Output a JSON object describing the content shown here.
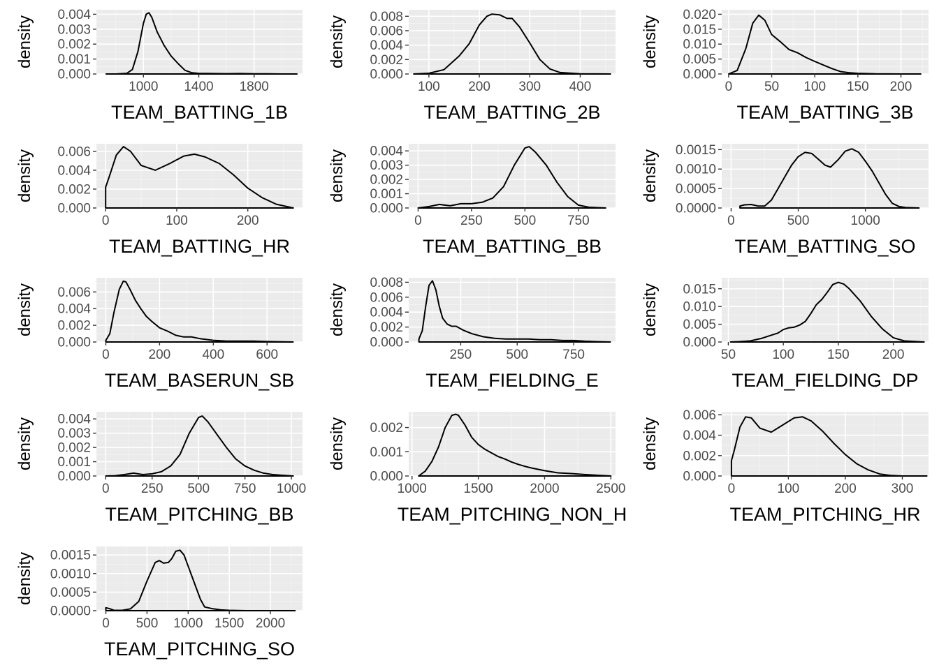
{
  "chart_data": [
    {
      "type": "line",
      "title": "",
      "xlabel": "TEAM_BATTING_1B",
      "ylabel": "density",
      "xlim": [
        660,
        2150
      ],
      "ylim": [
        0,
        0.0043
      ],
      "xticks": [
        1000,
        1400,
        1800
      ],
      "xtick_labels": [
        "1000",
        "1400",
        "1800"
      ],
      "yticks": [
        0,
        0.001,
        0.002,
        0.003,
        0.004
      ],
      "ytick_labels": [
        "0.000",
        "0.001",
        "0.002",
        "0.003",
        "0.004"
      ],
      "series": [
        {
          "x": [
            730,
            800,
            880,
            920,
            960,
            1000,
            1020,
            1040,
            1060,
            1100,
            1150,
            1200,
            1250,
            1300,
            1350,
            1400,
            1500,
            1600,
            1700,
            1800,
            1900,
            2000,
            2110
          ],
          "y": [
            0,
            0,
            4e-05,
            0.0003,
            0.0015,
            0.0034,
            0.004,
            0.0041,
            0.0038,
            0.0028,
            0.0019,
            0.0012,
            0.0007,
            0.00025,
            8e-05,
            4e-05,
            3e-05,
            2e-05,
            3e-05,
            1e-05,
            1e-05,
            0,
            0
          ]
        }
      ]
    },
    {
      "type": "line",
      "title": "",
      "xlabel": "TEAM_BATTING_2B",
      "ylabel": "density",
      "xlim": [
        60,
        470
      ],
      "ylim": [
        0,
        0.0089
      ],
      "xticks": [
        100,
        200,
        300,
        400
      ],
      "xtick_labels": [
        "100",
        "200",
        "300",
        "400"
      ],
      "yticks": [
        0,
        0.002,
        0.004,
        0.006,
        0.008
      ],
      "ytick_labels": [
        "0.000",
        "0.002",
        "0.004",
        "0.006",
        "0.008"
      ],
      "series": [
        {
          "x": [
            70,
            100,
            130,
            160,
            180,
            200,
            215,
            225,
            240,
            255,
            265,
            280,
            300,
            320,
            340,
            360,
            400,
            460
          ],
          "y": [
            0,
            0.0001,
            0.0006,
            0.0025,
            0.0042,
            0.0068,
            0.008,
            0.0083,
            0.0082,
            0.0077,
            0.0077,
            0.0065,
            0.0043,
            0.002,
            0.0007,
            0.0002,
            3e-05,
            0
          ]
        }
      ]
    },
    {
      "type": "line",
      "title": "",
      "xlabel": "TEAM_BATTING_3B",
      "ylabel": "density",
      "xlim": [
        -8,
        232
      ],
      "ylim": [
        0,
        0.0215
      ],
      "xticks": [
        0,
        50,
        100,
        150,
        200
      ],
      "xtick_labels": [
        "0",
        "50",
        "100",
        "150",
        "200"
      ],
      "yticks": [
        0,
        0.005,
        0.01,
        0.015,
        0.02
      ],
      "ytick_labels": [
        "0.000",
        "0.005",
        "0.010",
        "0.015",
        "0.020"
      ],
      "series": [
        {
          "x": [
            0,
            10,
            20,
            28,
            35,
            42,
            50,
            60,
            70,
            80,
            90,
            100,
            110,
            120,
            130,
            140,
            150,
            170,
            200,
            223
          ],
          "y": [
            0,
            0.0012,
            0.0085,
            0.017,
            0.0197,
            0.018,
            0.0132,
            0.0108,
            0.0082,
            0.0071,
            0.0055,
            0.0042,
            0.003,
            0.0018,
            0.0008,
            0.0004,
            0.0002,
            5e-05,
            1e-05,
            0
          ]
        }
      ]
    },
    {
      "type": "line",
      "title": "",
      "xlabel": "TEAM_BATTING_HR",
      "ylabel": "density",
      "xlim": [
        -13,
        277
      ],
      "ylim": [
        0,
        0.0068
      ],
      "xticks": [
        0,
        100,
        200
      ],
      "xtick_labels": [
        "0",
        "100",
        "200"
      ],
      "yticks": [
        0,
        0.002,
        0.004,
        0.006
      ],
      "ytick_labels": [
        "0.000",
        "0.002",
        "0.004",
        "0.006"
      ],
      "series": [
        {
          "x": [
            0,
            0,
            5,
            15,
            25,
            35,
            50,
            70,
            90,
            110,
            125,
            140,
            160,
            180,
            200,
            220,
            240,
            264
          ],
          "y": [
            0,
            0.0022,
            0.0033,
            0.0056,
            0.0065,
            0.006,
            0.0045,
            0.004,
            0.0047,
            0.0055,
            0.0057,
            0.0054,
            0.0047,
            0.0035,
            0.0021,
            0.0011,
            0.0004,
            0
          ]
        }
      ]
    },
    {
      "type": "line",
      "title": "",
      "xlabel": "TEAM_BATTING_BB",
      "ylabel": "density",
      "xlim": [
        -44,
        924
      ],
      "ylim": [
        0,
        0.0045
      ],
      "xticks": [
        0,
        250,
        500,
        750
      ],
      "xtick_labels": [
        "0",
        "250",
        "500",
        "750"
      ],
      "yticks": [
        0,
        0.001,
        0.002,
        0.003,
        0.004
      ],
      "ytick_labels": [
        "0.000",
        "0.001",
        "0.002",
        "0.003",
        "0.004"
      ],
      "series": [
        {
          "x": [
            0,
            50,
            100,
            150,
            200,
            250,
            300,
            350,
            400,
            450,
            500,
            520,
            550,
            600,
            650,
            700,
            750,
            800,
            878
          ],
          "y": [
            0,
            0.0001,
            0.00025,
            0.00015,
            0.0003,
            0.0003,
            0.0004,
            0.0007,
            0.0015,
            0.003,
            0.0042,
            0.0043,
            0.0039,
            0.003,
            0.0018,
            0.0008,
            0.0002,
            5e-05,
            0
          ]
        }
      ]
    },
    {
      "type": "line",
      "title": "",
      "xlabel": "TEAM_BATTING_SO",
      "ylabel": "density",
      "xlim": [
        -70,
        1470
      ],
      "ylim": [
        0,
        0.00165
      ],
      "xticks": [
        0,
        500,
        1000
      ],
      "xtick_labels": [
        "0",
        "500",
        "1000"
      ],
      "yticks": [
        0,
        0.0005,
        0.001,
        0.0015
      ],
      "ytick_labels": [
        "0.0000",
        "0.0005",
        "0.0010",
        "0.0015"
      ],
      "series": [
        {
          "x": [
            66,
            100,
            150,
            200,
            250,
            300,
            350,
            400,
            450,
            500,
            550,
            600,
            650,
            700,
            740,
            800,
            850,
            900,
            950,
            1000,
            1050,
            1100,
            1150,
            1200,
            1250,
            1300,
            1399
          ],
          "y": [
            5e-05,
            8e-05,
            9e-05,
            5e-05,
            5e-05,
            0.0002,
            0.0005,
            0.0008,
            0.0011,
            0.00132,
            0.00143,
            0.0014,
            0.00125,
            0.0011,
            0.00105,
            0.00125,
            0.00146,
            0.00152,
            0.00143,
            0.0012,
            0.00095,
            0.00065,
            0.00035,
            0.00012,
            4e-05,
            1e-05,
            0
          ]
        }
      ]
    },
    {
      "type": "line",
      "title": "",
      "xlabel": "TEAM_BASERUN_SB",
      "ylabel": "density",
      "xlim": [
        -35,
        732
      ],
      "ylim": [
        0,
        0.0077
      ],
      "xticks": [
        0,
        200,
        400,
        600
      ],
      "xtick_labels": [
        "0",
        "200",
        "400",
        "600"
      ],
      "yticks": [
        0,
        0.002,
        0.004,
        0.006
      ],
      "ytick_labels": [
        "0.000",
        "0.002",
        "0.004",
        "0.006"
      ],
      "series": [
        {
          "x": [
            0,
            15,
            30,
            50,
            65,
            75,
            90,
            110,
            130,
            150,
            170,
            200,
            230,
            260,
            290,
            320,
            350,
            400,
            450,
            500,
            550,
            600,
            697
          ],
          "y": [
            0.0002,
            0.001,
            0.0035,
            0.0063,
            0.0073,
            0.0072,
            0.0063,
            0.005,
            0.004,
            0.0031,
            0.0025,
            0.0017,
            0.0013,
            0.0008,
            0.0006,
            0.0006,
            0.0004,
            0.0002,
            0.0001,
            0.0001,
            0.0001,
            5e-05,
            0
          ]
        }
      ]
    },
    {
      "type": "line",
      "title": "",
      "xlabel": "TEAM_FIELDING_E",
      "ylabel": "density",
      "xlim": [
        20,
        935
      ],
      "ylim": [
        0,
        0.0086
      ],
      "xticks": [
        250,
        500,
        750
      ],
      "xtick_labels": [
        "250",
        "500",
        "750"
      ],
      "yticks": [
        0,
        0.002,
        0.004,
        0.006,
        0.008
      ],
      "ytick_labels": [
        "0.000",
        "0.002",
        "0.004",
        "0.006",
        "0.008"
      ],
      "series": [
        {
          "x": [
            65,
            80,
            95,
            110,
            125,
            140,
            155,
            170,
            190,
            210,
            230,
            260,
            300,
            350,
            400,
            450,
            500,
            550,
            600,
            650,
            700,
            750,
            800,
            850,
            912
          ],
          "y": [
            0.0004,
            0.0015,
            0.0048,
            0.0076,
            0.0082,
            0.007,
            0.0048,
            0.0032,
            0.0024,
            0.0021,
            0.0021,
            0.0016,
            0.0011,
            0.0007,
            0.0005,
            0.0004,
            0.0004,
            0.0004,
            0.0003,
            0.0003,
            0.0002,
            0.0002,
            0.0001,
            5e-05,
            0
          ]
        }
      ]
    },
    {
      "type": "line",
      "title": "",
      "xlabel": "TEAM_FIELDING_DP",
      "ylabel": "density",
      "xlim": [
        44,
        232
      ],
      "ylim": [
        0,
        0.0181
      ],
      "xticks": [
        50,
        100,
        150,
        200
      ],
      "xtick_labels": [
        "50",
        "100",
        "150",
        "200"
      ],
      "yticks": [
        0,
        0.005,
        0.01,
        0.015
      ],
      "ytick_labels": [
        "0.000",
        "0.005",
        "0.010",
        "0.015"
      ],
      "series": [
        {
          "x": [
            52,
            60,
            70,
            80,
            90,
            95,
            100,
            105,
            110,
            115,
            120,
            125,
            130,
            135,
            140,
            145,
            150,
            155,
            160,
            170,
            180,
            190,
            200,
            210,
            228
          ],
          "y": [
            0,
            0.0001,
            0.0003,
            0.001,
            0.002,
            0.0025,
            0.0035,
            0.004,
            0.0042,
            0.0048,
            0.0058,
            0.008,
            0.0105,
            0.012,
            0.014,
            0.0162,
            0.0168,
            0.0163,
            0.015,
            0.0115,
            0.0072,
            0.0037,
            0.0012,
            0.0003,
            0
          ]
        }
      ]
    },
    {
      "type": "line",
      "title": "",
      "xlabel": "TEAM_PITCHING_BB",
      "ylabel": "density",
      "xlim": [
        -50,
        1060
      ],
      "ylim": [
        0,
        0.0045
      ],
      "xticks": [
        0,
        250,
        500,
        750,
        1000
      ],
      "xtick_labels": [
        "0",
        "250",
        "500",
        "750",
        "1000"
      ],
      "yticks": [
        0,
        0.001,
        0.002,
        0.003,
        0.004
      ],
      "ytick_labels": [
        "0.000",
        "0.001",
        "0.002",
        "0.003",
        "0.004"
      ],
      "series": [
        {
          "x": [
            0,
            50,
            100,
            150,
            200,
            250,
            300,
            350,
            400,
            450,
            500,
            520,
            550,
            600,
            650,
            700,
            750,
            800,
            850,
            900,
            950,
            1010
          ],
          "y": [
            0,
            2e-05,
            0.0001,
            0.0002,
            0.0001,
            0.00015,
            0.0003,
            0.0007,
            0.0015,
            0.003,
            0.0041,
            0.0042,
            0.0038,
            0.0029,
            0.002,
            0.0012,
            0.0007,
            0.0004,
            0.0002,
            0.0001,
            5e-05,
            0
          ]
        }
      ]
    },
    {
      "type": "line",
      "title": "",
      "xlabel": "TEAM_PITCHING_NON_H",
      "ylabel": "density",
      "xlim": [
        975,
        2535
      ],
      "ylim": [
        0,
        0.00265
      ],
      "xticks": [
        1000,
        1500,
        2000,
        2500
      ],
      "xtick_labels": [
        "1000",
        "1500",
        "2000",
        "2500"
      ],
      "yticks": [
        0,
        0.001,
        0.002
      ],
      "ytick_labels": [
        "0.000",
        "0.001",
        "0.002"
      ],
      "series": [
        {
          "x": [
            1050,
            1100,
            1150,
            1200,
            1250,
            1300,
            1330,
            1350,
            1400,
            1450,
            1500,
            1550,
            1600,
            1650,
            1700,
            1750,
            1800,
            1850,
            1900,
            2000,
            2100,
            2200,
            2300,
            2400,
            2500
          ],
          "y": [
            0,
            0.0002,
            0.0006,
            0.0012,
            0.002,
            0.0025,
            0.00255,
            0.0025,
            0.0021,
            0.0016,
            0.0013,
            0.0011,
            0.00095,
            0.0008,
            0.0007,
            0.00058,
            0.00048,
            0.0004,
            0.00033,
            0.00022,
            0.00013,
            0.0001,
            6e-05,
            3e-05,
            0
          ]
        }
      ]
    },
    {
      "type": "line",
      "title": "",
      "xlabel": "TEAM_PITCHING_HR",
      "ylabel": "density",
      "xlim": [
        -17,
        346
      ],
      "ylim": [
        0,
        0.0063
      ],
      "xticks": [
        0,
        100,
        200,
        300
      ],
      "xtick_labels": [
        "0",
        "100",
        "200",
        "300"
      ],
      "yticks": [
        0,
        0.002,
        0.004,
        0.006
      ],
      "ytick_labels": [
        "0.000",
        "0.002",
        "0.004",
        "0.006"
      ],
      "series": [
        {
          "x": [
            0,
            0,
            5,
            15,
            25,
            35,
            50,
            70,
            90,
            110,
            125,
            140,
            160,
            180,
            200,
            220,
            240,
            260,
            280,
            300,
            343
          ],
          "y": [
            0,
            0.0015,
            0.0025,
            0.0048,
            0.0058,
            0.0057,
            0.0047,
            0.0043,
            0.005,
            0.0057,
            0.0058,
            0.0054,
            0.0044,
            0.0032,
            0.0021,
            0.0012,
            0.0006,
            0.0002,
            5e-05,
            0,
            0
          ]
        }
      ]
    },
    {
      "type": "line",
      "title": "",
      "xlabel": "TEAM_PITCHING_SO",
      "ylabel": "density",
      "xlim": [
        -115,
        2390
      ],
      "ylim": [
        0,
        0.00173
      ],
      "xticks": [
        0,
        500,
        1000,
        1500,
        2000
      ],
      "xtick_labels": [
        "0",
        "500",
        "1000",
        "1500",
        "2000"
      ],
      "yticks": [
        0,
        0.0005,
        0.001,
        0.0015
      ],
      "ytick_labels": [
        "0.0000",
        "0.0005",
        "0.0010",
        "0.0015"
      ],
      "series": [
        {
          "x": [
            0,
            50,
            100,
            200,
            300,
            400,
            500,
            600,
            650,
            700,
            760,
            800,
            850,
            900,
            950,
            1000,
            1050,
            1100,
            1150,
            1200,
            1300,
            1400,
            1500,
            1700,
            2000,
            2300
          ],
          "y": [
            8e-05,
            5e-05,
            1e-05,
            1e-05,
            5e-05,
            0.00025,
            0.0008,
            0.0013,
            0.00135,
            0.00128,
            0.0013,
            0.0014,
            0.0016,
            0.00163,
            0.0015,
            0.0012,
            0.0009,
            0.0006,
            0.0003,
            0.0001,
            5e-05,
            2e-05,
            1e-05,
            0,
            0,
            0
          ]
        }
      ]
    }
  ]
}
